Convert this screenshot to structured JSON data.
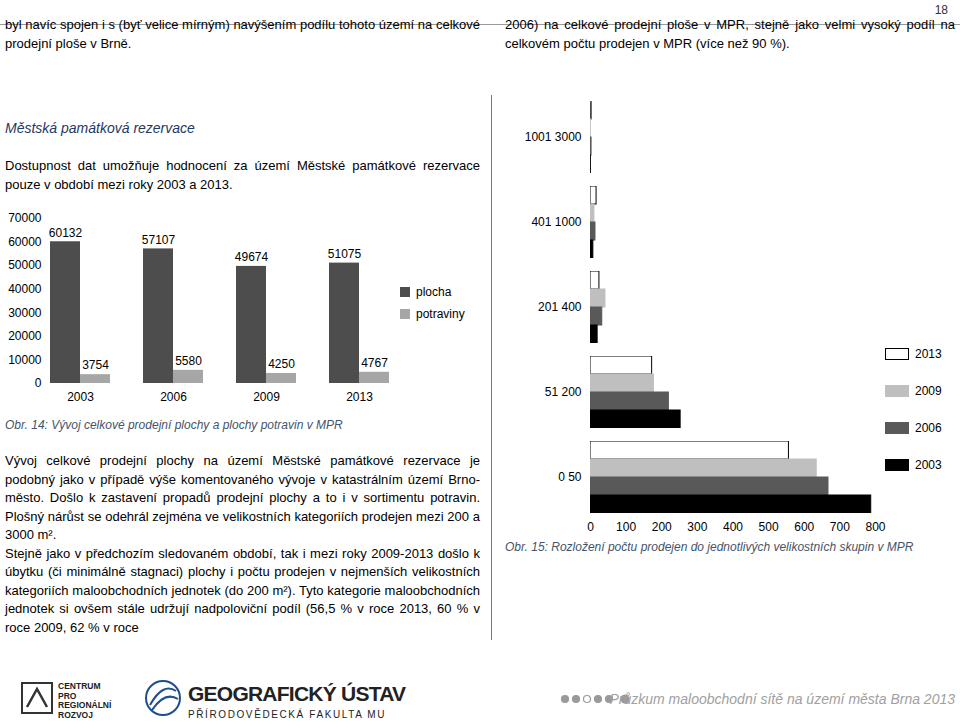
{
  "page": {
    "number": "18",
    "left_top": "byl navíc spojen i s (byť velice mírným) navýšením podílu tohoto území na celkové prodejní ploše v Brně.",
    "right_top": "2006) na celkové prodejní ploše v MPR, stejně jako velmi vysoký podíl na celkovém počtu prodejen v MPR (více než 90 %).",
    "heading": "Městská památková rezervace",
    "intro": "Dostupnost dat umožňuje hodnocení za území Městské památkové rezervace pouze v období mezi roky 2003 a 2013.",
    "paragraphs": [
      "Vývoj celkové prodejní plochy na území Městské památkové rezervace je podobný jako v případě výše komentovaného vývoje v katastrálním území Brno-město. Došlo k zastavení propadů prodejní plochy a to i v sortimentu potravin. Plošný nárůst se odehrál zejména ve velikostních kategoriích prodejen mezi 200 a 3000 m².",
      "Stejně jako v předchozím sledovaném období, tak i mezi roky 2009-2013 došlo k úbytku (či minimálně stagnaci) plochy i počtu prodejen v nejmenších velikostních kategoriích maloobchodních jednotek (do 200 m²). Tyto kategorie maloobchodních jednotek si ovšem stále udržují nadpoloviční podíl (56,5 % v roce 2013, 60 % v roce 2009, 62 % v roce"
    ],
    "footer": {
      "logo1": [
        "CENTRUM",
        "PRO",
        "REGIONÁLNÍ",
        "ROZVOJ"
      ],
      "logo2_title": "GEOGRAFICKÝ ÚSTAV",
      "logo2_sub": "PŘÍRODOVĚDECKÁ FAKULTA MU",
      "report": "Průzkum maloobchodní sítě na území města Brna 2013"
    }
  },
  "chart_data": [
    {
      "type": "bar",
      "caption": "Obr. 14: Vývoj celkové prodejní plochy a plochy potravin v MPR",
      "categories": [
        "2003",
        "2006",
        "2009",
        "2013"
      ],
      "series": [
        {
          "name": "plocha",
          "color": "#4d4d4d",
          "values": [
            60132,
            57107,
            49674,
            51075
          ]
        },
        {
          "name": "potraviny",
          "color": "#a6a6a6",
          "values": [
            3754,
            5580,
            4250,
            4767
          ]
        }
      ],
      "ylim": [
        0,
        70000
      ],
      "yticks": [
        0,
        10000,
        20000,
        30000,
        40000,
        50000,
        60000,
        70000
      ],
      "data_labels": true,
      "legend": "right"
    },
    {
      "type": "bar",
      "orientation": "horizontal",
      "caption": "Obr. 15: Rozložení počtu prodejen do jednotlivých velikostních skupin v MPR",
      "categories": [
        "1001 3000",
        "401 1000",
        "201 400",
        "51 200",
        "0 50"
      ],
      "series": [
        {
          "name": "2013",
          "color": "#ffffff",
          "values": [
            3,
            17,
            25,
            173,
            557
          ]
        },
        {
          "name": "2009",
          "color": "#bfbfbf",
          "values": [
            1,
            11,
            42,
            178,
            635
          ]
        },
        {
          "name": "2006",
          "color": "#595959",
          "values": [
            3,
            14,
            33,
            220,
            668
          ]
        },
        {
          "name": "2003",
          "color": "#000000",
          "values": [
            1,
            8,
            20,
            253,
            788
          ]
        }
      ],
      "xlim": [
        0,
        800
      ],
      "xticks": [
        0,
        100,
        200,
        300,
        400,
        500,
        600,
        700,
        800
      ],
      "legend": "right"
    }
  ]
}
